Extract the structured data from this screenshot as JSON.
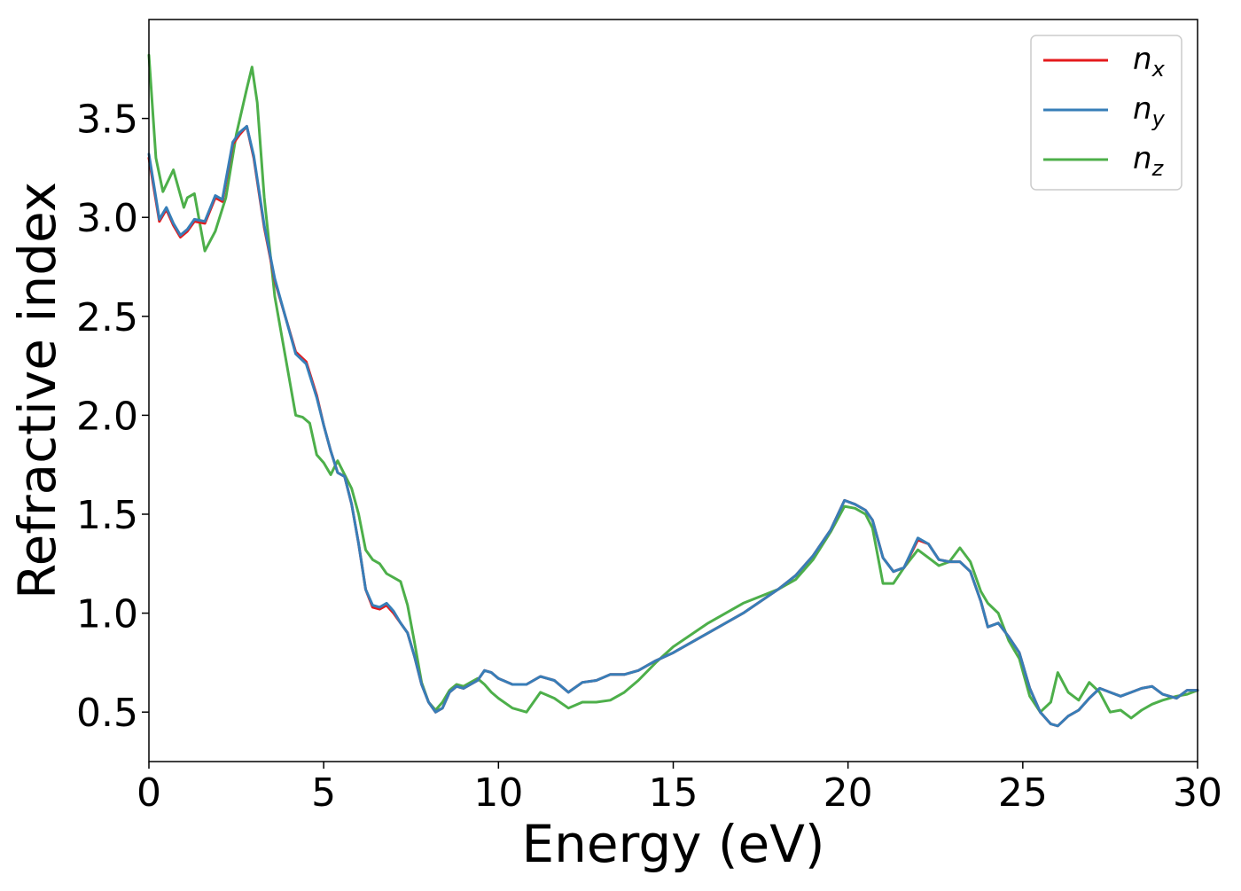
{
  "chart_data": {
    "type": "line",
    "xlabel": "Energy (eV)",
    "ylabel": "Refractive index",
    "xlim": [
      0,
      30
    ],
    "ylim": [
      0.25,
      4.0
    ],
    "xticks": [
      0,
      5,
      10,
      15,
      20,
      25,
      30
    ],
    "xtick_labels": [
      "0",
      "5",
      "10",
      "15",
      "20",
      "25",
      "30"
    ],
    "yticks": [
      0.5,
      1.0,
      1.5,
      2.0,
      2.5,
      3.0,
      3.5
    ],
    "ytick_labels": [
      "0.5",
      "1.0",
      "1.5",
      "2.0",
      "2.5",
      "3.0",
      "3.5"
    ],
    "grid": false,
    "legend_position": "top-right",
    "series": [
      {
        "name": "n_x",
        "legend_main": "n",
        "legend_sub": "x",
        "color": "#e41a1c",
        "x": [
          0,
          0.3,
          0.5,
          0.7,
          0.9,
          1.1,
          1.3,
          1.6,
          1.9,
          2.1,
          2.4,
          2.6,
          2.8,
          3.0,
          3.3,
          3.6,
          3.9,
          4.2,
          4.5,
          4.8,
          5.0,
          5.2,
          5.4,
          5.6,
          5.8,
          6.0,
          6.2,
          6.4,
          6.6,
          6.8,
          7.0,
          7.2,
          7.4,
          7.6,
          7.8,
          8.0,
          8.2,
          8.4,
          8.6,
          8.8,
          9.0,
          9.2,
          9.4,
          9.6,
          9.8,
          10.0,
          10.4,
          10.8,
          11.2,
          11.6,
          12.0,
          12.4,
          12.8,
          13.2,
          13.6,
          14.0,
          14.5,
          15.0,
          16.0,
          17.0,
          18.0,
          18.5,
          19.0,
          19.5,
          19.9,
          20.2,
          20.5,
          20.7,
          21.0,
          21.3,
          21.6,
          22.0,
          22.3,
          22.6,
          22.9,
          23.2,
          23.5,
          23.8,
          24.0,
          24.3,
          24.6,
          24.9,
          25.2,
          25.5,
          25.8,
          26.0,
          26.3,
          26.6,
          26.9,
          27.2,
          27.5,
          27.8,
          28.1,
          28.4,
          28.7,
          29.0,
          29.4,
          29.7,
          30.0
        ],
        "y": [
          3.3,
          2.98,
          3.04,
          2.96,
          2.9,
          2.93,
          2.98,
          2.97,
          3.1,
          3.08,
          3.37,
          3.42,
          3.46,
          3.3,
          2.95,
          2.68,
          2.5,
          2.32,
          2.27,
          2.1,
          1.95,
          1.82,
          1.71,
          1.69,
          1.55,
          1.35,
          1.12,
          1.03,
          1.02,
          1.04,
          1.0,
          0.95,
          0.9,
          0.78,
          0.64,
          0.55,
          0.5,
          0.52,
          0.6,
          0.63,
          0.62,
          0.64,
          0.66,
          0.71,
          0.7,
          0.67,
          0.64,
          0.64,
          0.68,
          0.66,
          0.6,
          0.65,
          0.66,
          0.69,
          0.69,
          0.71,
          0.76,
          0.8,
          0.9,
          1.0,
          1.12,
          1.19,
          1.29,
          1.42,
          1.57,
          1.55,
          1.52,
          1.47,
          1.28,
          1.21,
          1.23,
          1.37,
          1.35,
          1.27,
          1.26,
          1.26,
          1.21,
          1.06,
          0.93,
          0.95,
          0.88,
          0.8,
          0.62,
          0.5,
          0.44,
          0.43,
          0.48,
          0.51,
          0.57,
          0.62,
          0.6,
          0.58,
          0.6,
          0.62,
          0.63,
          0.59,
          0.57,
          0.61,
          0.61
        ]
      },
      {
        "name": "n_y",
        "legend_main": "n",
        "legend_sub": "y",
        "color": "#377eb8",
        "x": [
          0,
          0.3,
          0.5,
          0.7,
          0.9,
          1.1,
          1.3,
          1.6,
          1.9,
          2.1,
          2.4,
          2.6,
          2.8,
          3.0,
          3.3,
          3.6,
          3.9,
          4.2,
          4.5,
          4.8,
          5.0,
          5.2,
          5.4,
          5.6,
          5.8,
          6.0,
          6.2,
          6.4,
          6.6,
          6.8,
          7.0,
          7.2,
          7.4,
          7.6,
          7.8,
          8.0,
          8.2,
          8.4,
          8.6,
          8.8,
          9.0,
          9.2,
          9.4,
          9.6,
          9.8,
          10.0,
          10.4,
          10.8,
          11.2,
          11.6,
          12.0,
          12.4,
          12.8,
          13.2,
          13.6,
          14.0,
          14.5,
          15.0,
          16.0,
          17.0,
          18.0,
          18.5,
          19.0,
          19.5,
          19.9,
          20.2,
          20.5,
          20.7,
          21.0,
          21.3,
          21.6,
          22.0,
          22.3,
          22.6,
          22.9,
          23.2,
          23.5,
          23.8,
          24.0,
          24.3,
          24.6,
          24.9,
          25.2,
          25.5,
          25.8,
          26.0,
          26.3,
          26.6,
          26.9,
          27.2,
          27.5,
          27.8,
          28.1,
          28.4,
          28.7,
          29.0,
          29.4,
          29.7,
          30.0
        ],
        "y": [
          3.32,
          2.99,
          3.05,
          2.97,
          2.91,
          2.94,
          2.99,
          2.98,
          3.11,
          3.09,
          3.38,
          3.43,
          3.46,
          3.31,
          2.96,
          2.69,
          2.5,
          2.31,
          2.26,
          2.09,
          1.95,
          1.82,
          1.71,
          1.69,
          1.55,
          1.35,
          1.12,
          1.04,
          1.03,
          1.05,
          1.01,
          0.95,
          0.9,
          0.78,
          0.64,
          0.55,
          0.5,
          0.52,
          0.6,
          0.63,
          0.62,
          0.64,
          0.66,
          0.71,
          0.7,
          0.67,
          0.64,
          0.64,
          0.68,
          0.66,
          0.6,
          0.65,
          0.66,
          0.69,
          0.69,
          0.71,
          0.76,
          0.8,
          0.9,
          1.0,
          1.12,
          1.19,
          1.29,
          1.42,
          1.57,
          1.55,
          1.52,
          1.47,
          1.28,
          1.21,
          1.23,
          1.38,
          1.35,
          1.27,
          1.26,
          1.26,
          1.21,
          1.06,
          0.93,
          0.95,
          0.88,
          0.8,
          0.62,
          0.5,
          0.44,
          0.43,
          0.48,
          0.51,
          0.57,
          0.62,
          0.6,
          0.58,
          0.6,
          0.62,
          0.63,
          0.59,
          0.57,
          0.61,
          0.61
        ]
      },
      {
        "name": "n_z",
        "legend_main": "n",
        "legend_sub": "z",
        "color": "#4daf4a",
        "x": [
          0,
          0.2,
          0.4,
          0.7,
          1.0,
          1.1,
          1.3,
          1.6,
          1.9,
          2.2,
          2.5,
          2.8,
          2.95,
          3.1,
          3.3,
          3.6,
          3.9,
          4.2,
          4.4,
          4.6,
          4.8,
          5.0,
          5.2,
          5.4,
          5.6,
          5.8,
          6.0,
          6.2,
          6.4,
          6.6,
          6.8,
          7.0,
          7.2,
          7.4,
          7.6,
          7.8,
          8.0,
          8.2,
          8.4,
          8.6,
          8.8,
          9.0,
          9.2,
          9.4,
          9.6,
          9.8,
          10.0,
          10.4,
          10.8,
          11.2,
          11.6,
          12.0,
          12.4,
          12.8,
          13.2,
          13.6,
          14.0,
          14.5,
          15.0,
          16.0,
          17.0,
          18.0,
          18.5,
          19.0,
          19.5,
          19.9,
          20.2,
          20.5,
          20.7,
          21.0,
          21.3,
          21.6,
          22.0,
          22.3,
          22.6,
          22.9,
          23.2,
          23.5,
          23.8,
          24.0,
          24.3,
          24.6,
          24.9,
          25.2,
          25.5,
          25.8,
          26.0,
          26.3,
          26.6,
          26.9,
          27.2,
          27.5,
          27.8,
          28.1,
          28.4,
          28.7,
          29.0,
          29.4,
          29.7,
          30.0
        ],
        "y": [
          3.82,
          3.3,
          3.13,
          3.24,
          3.05,
          3.1,
          3.12,
          2.83,
          2.93,
          3.1,
          3.42,
          3.65,
          3.76,
          3.58,
          3.1,
          2.6,
          2.3,
          2.0,
          1.99,
          1.96,
          1.8,
          1.76,
          1.7,
          1.77,
          1.7,
          1.63,
          1.5,
          1.32,
          1.27,
          1.25,
          1.2,
          1.18,
          1.16,
          1.04,
          0.85,
          0.65,
          0.55,
          0.51,
          0.55,
          0.61,
          0.64,
          0.63,
          0.65,
          0.67,
          0.64,
          0.6,
          0.57,
          0.52,
          0.5,
          0.6,
          0.57,
          0.52,
          0.55,
          0.55,
          0.56,
          0.6,
          0.66,
          0.75,
          0.83,
          0.95,
          1.05,
          1.12,
          1.17,
          1.27,
          1.41,
          1.54,
          1.53,
          1.5,
          1.43,
          1.15,
          1.15,
          1.23,
          1.32,
          1.28,
          1.24,
          1.26,
          1.33,
          1.26,
          1.11,
          1.05,
          1.0,
          0.86,
          0.77,
          0.58,
          0.5,
          0.55,
          0.7,
          0.6,
          0.56,
          0.65,
          0.6,
          0.5,
          0.51,
          0.47,
          0.51,
          0.54,
          0.56,
          0.58,
          0.59,
          0.61
        ]
      }
    ]
  }
}
